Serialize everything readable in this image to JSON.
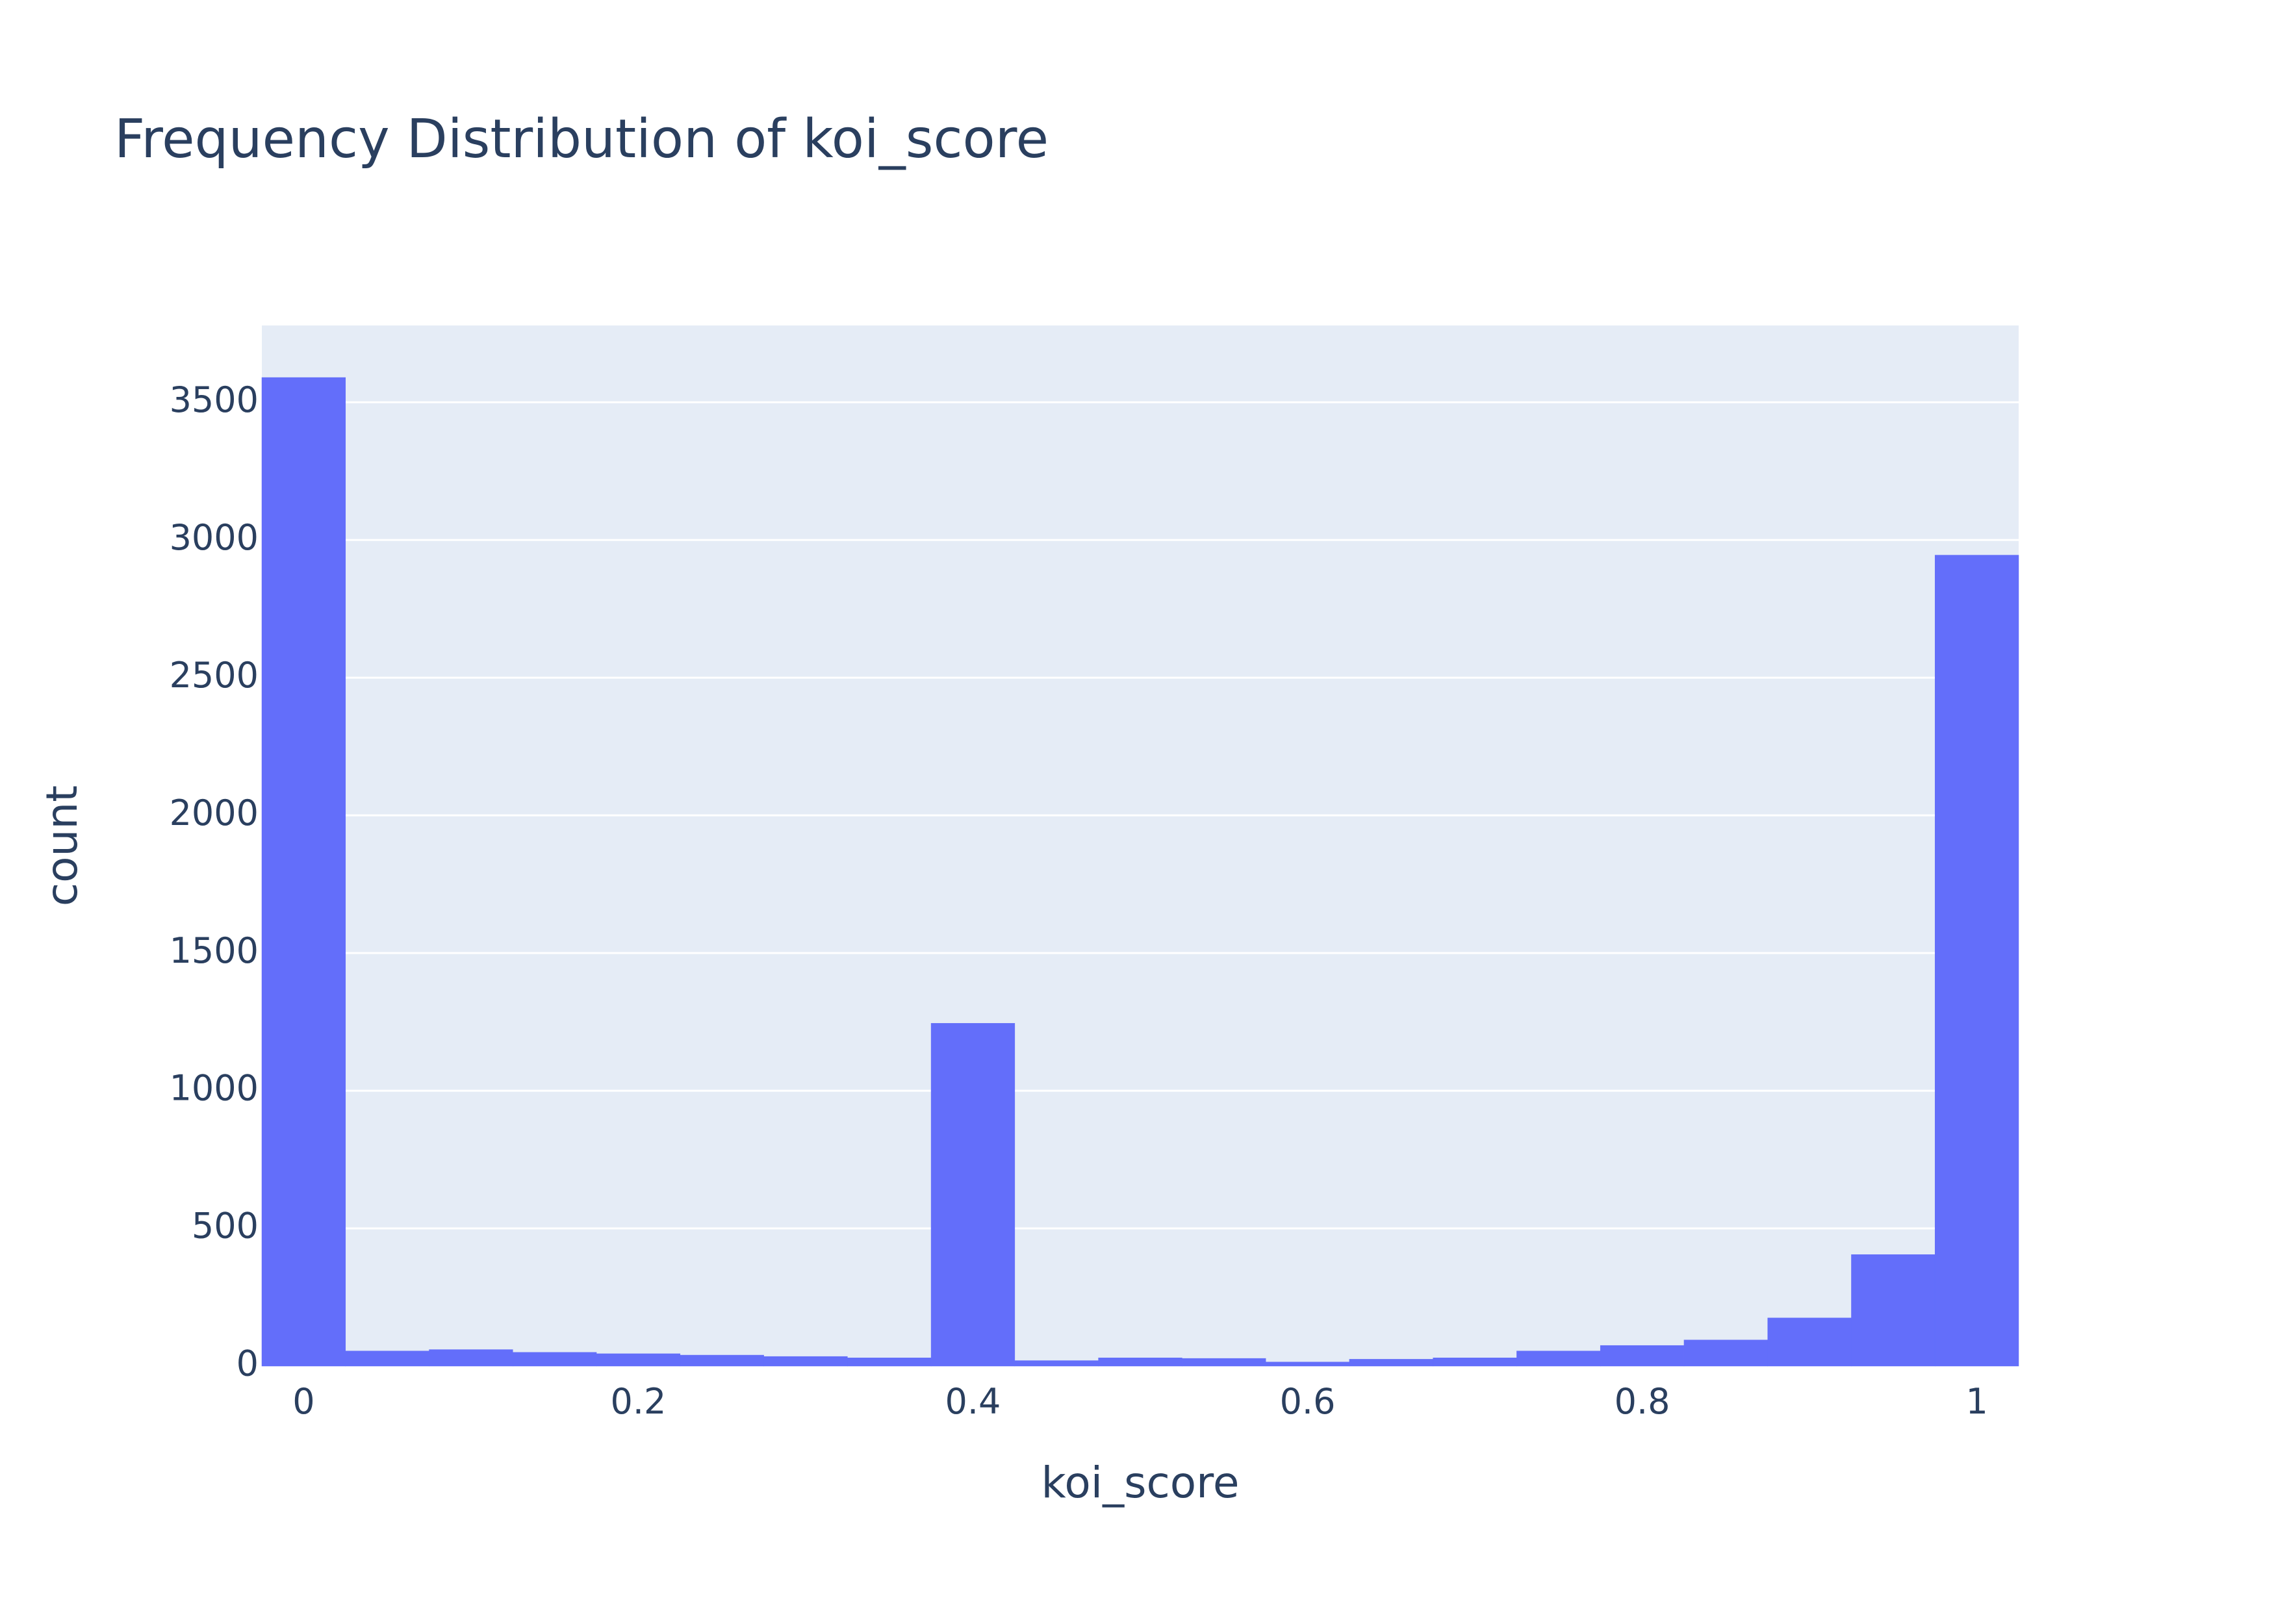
{
  "chart_data": {
    "type": "bar",
    "title": "Frequency Distribution of koi_score",
    "xlabel": "koi_score",
    "ylabel": "count",
    "bin_width": 0.05,
    "bins_start": [
      0,
      0.05,
      0.1,
      0.15,
      0.2,
      0.25,
      0.3,
      0.35,
      0.4,
      0.45,
      0.5,
      0.55,
      0.6,
      0.65,
      0.7,
      0.75,
      0.8,
      0.85,
      0.9,
      0.95,
      1.0
    ],
    "values": [
      3590,
      55,
      60,
      50,
      45,
      40,
      35,
      30,
      1245,
      20,
      30,
      28,
      15,
      25,
      30,
      55,
      75,
      95,
      175,
      405,
      2945
    ],
    "xlim": [
      -0.025,
      1.025
    ],
    "ylim": [
      0,
      3779
    ],
    "x_ticks": [
      "0",
      "0.2",
      "0.4",
      "0.6",
      "0.8",
      "1"
    ],
    "x_tick_values": [
      0,
      0.2,
      0.4,
      0.6,
      0.8,
      1
    ],
    "y_ticks": [
      "0",
      "500",
      "1000",
      "1500",
      "2000",
      "2500",
      "3000",
      "3500"
    ],
    "y_tick_values": [
      0,
      500,
      1000,
      1500,
      2000,
      2500,
      3000,
      3500
    ],
    "grid": true,
    "colors": {
      "bar": "#636efa",
      "plot_bg": "#e5ecf6",
      "grid": "#ffffff",
      "text": "#2a3f5f"
    }
  }
}
